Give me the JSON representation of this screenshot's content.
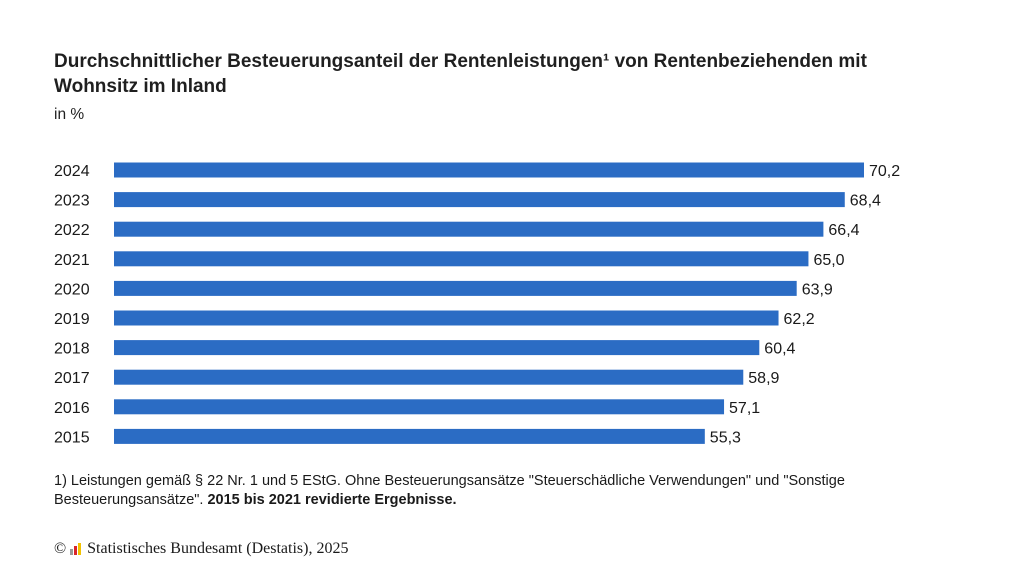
{
  "chart_data": {
    "type": "bar",
    "orientation": "horizontal",
    "title": "Durchschnittlicher Besteuerungsanteil der Rentenleistungen¹ von Rentenbeziehenden mit Wohnsitz im Inland",
    "subtitle": "in %",
    "categories": [
      "2024",
      "2023",
      "2022",
      "2021",
      "2020",
      "2019",
      "2018",
      "2017",
      "2016",
      "2015"
    ],
    "values": [
      70.2,
      68.4,
      66.4,
      65.0,
      63.9,
      62.2,
      60.4,
      58.9,
      57.1,
      55.3
    ],
    "value_labels": [
      "70,2",
      "68,4",
      "66,4",
      "65,0",
      "63,9",
      "62,2",
      "60,4",
      "58,9",
      "57,1",
      "55,3"
    ],
    "xlim": [
      0,
      70.2
    ],
    "grid": false,
    "bar_color": "#2b6cc4"
  },
  "footnote": {
    "text": "1)  Leistungen gemäß § 22 Nr. 1 und 5 EStG. Ohne Besteuerungsansätze \"Steuerschädliche Verwendungen\" und \"Sonstige Besteuerungsansätze\". ",
    "bold": "2015 bis 2021 revidierte Ergebnisse."
  },
  "source": {
    "copyright": "©",
    "text": "Statistisches Bundesamt (Destatis), 2025",
    "logo_colors": [
      "#9a9a9a",
      "#d9262b",
      "#f2c200"
    ]
  }
}
